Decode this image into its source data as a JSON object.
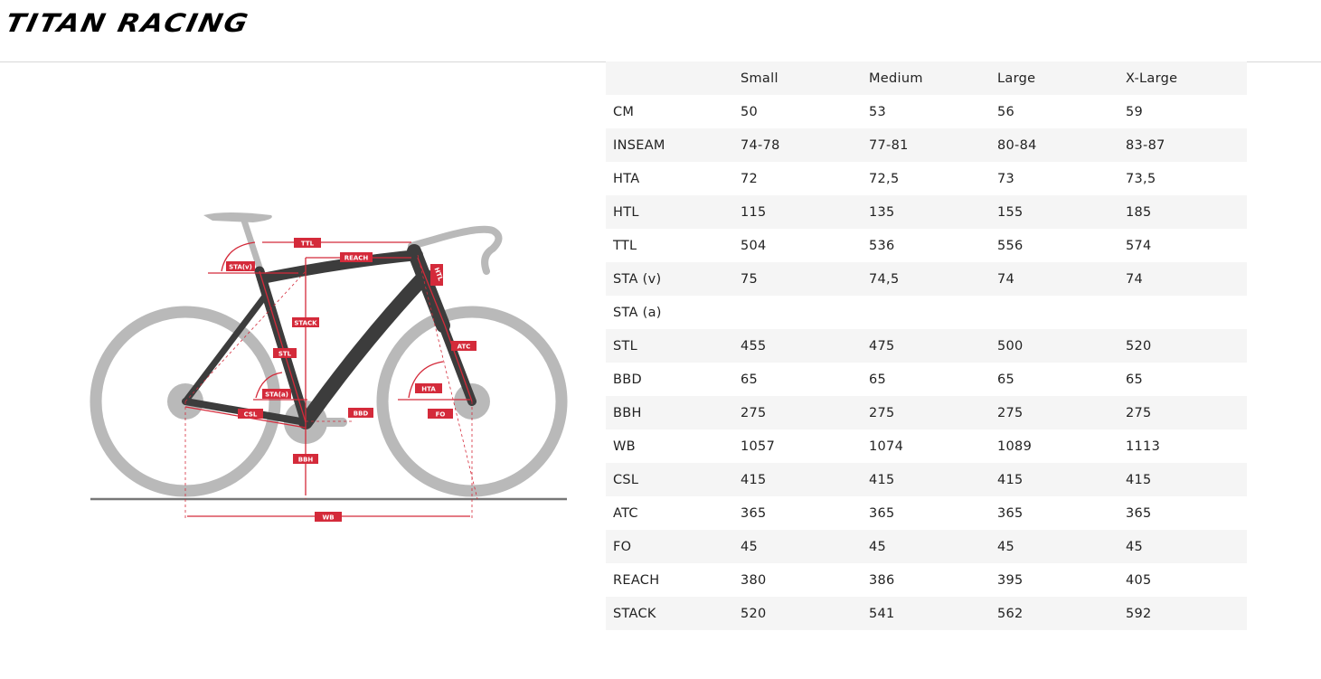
{
  "brand": {
    "logo_text": "TITAN RACING"
  },
  "diagram_labels": {
    "ttl": "TTL",
    "reach": "REACH",
    "sta_v": "STA(v)",
    "htl": "HTL",
    "stack": "STACK",
    "stl": "STL",
    "atc": "ATC",
    "hta": "HTA",
    "sta_a": "STA(a)",
    "csl": "CSL",
    "bbd": "BBD",
    "fo": "FO",
    "bbh": "BBH",
    "wb": "WB"
  },
  "colors": {
    "accent_red": "#d42a3a",
    "frame": "#3c3c3c",
    "wheel": "#b9b9b9"
  },
  "table": {
    "headers": [
      "",
      "Small",
      "Medium",
      "Large",
      "X-Large"
    ],
    "rows": [
      [
        "CM",
        "50",
        "53",
        "56",
        "59"
      ],
      [
        "INSEAM",
        "74-78",
        "77-81",
        "80-84",
        "83-87"
      ],
      [
        "HTA",
        "72",
        "72,5",
        "73",
        "73,5"
      ],
      [
        "HTL",
        "115",
        "135",
        "155",
        "185"
      ],
      [
        "TTL",
        "504",
        "536",
        "556",
        "574"
      ],
      [
        "STA (v)",
        "75",
        "74,5",
        "74",
        "74"
      ],
      [
        "STA (a)",
        "",
        "",
        "",
        ""
      ],
      [
        "STL",
        "455",
        "475",
        "500",
        "520"
      ],
      [
        "BBD",
        "65",
        "65",
        "65",
        "65"
      ],
      [
        "BBH",
        "275",
        "275",
        "275",
        "275"
      ],
      [
        "WB",
        "1057",
        "1074",
        "1089",
        "1113"
      ],
      [
        "CSL",
        "415",
        "415",
        "415",
        "415"
      ],
      [
        "ATC",
        "365",
        "365",
        "365",
        "365"
      ],
      [
        "FO",
        "45",
        "45",
        "45",
        "45"
      ],
      [
        "REACH",
        "380",
        "386",
        "395",
        "405"
      ],
      [
        "STACK",
        "520",
        "541",
        "562",
        "592"
      ]
    ]
  }
}
